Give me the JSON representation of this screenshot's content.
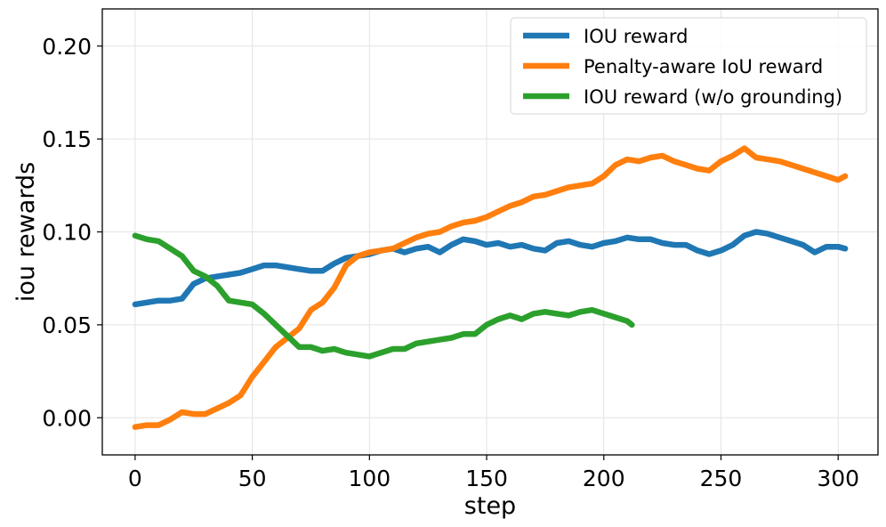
{
  "chart_data": {
    "type": "line",
    "title": "",
    "xlabel": "step",
    "ylabel": "iou rewards",
    "xlim": [
      -14,
      317
    ],
    "ylim": [
      -0.02,
      0.22
    ],
    "xticks": [
      0,
      50,
      100,
      150,
      200,
      250,
      300
    ],
    "xtick_labels": [
      "0",
      "50",
      "100",
      "150",
      "200",
      "250",
      "300"
    ],
    "yticks": [
      0.0,
      0.05,
      0.1,
      0.15,
      0.2
    ],
    "ytick_labels": [
      "0.00",
      "0.05",
      "0.10",
      "0.15",
      "0.20"
    ],
    "grid": true,
    "legend_position": "top-right",
    "series": [
      {
        "name": "IOU reward",
        "color": "#1f77b4",
        "x": [
          0,
          5,
          10,
          15,
          20,
          25,
          30,
          35,
          40,
          45,
          50,
          55,
          60,
          65,
          70,
          75,
          80,
          85,
          90,
          95,
          100,
          105,
          110,
          115,
          120,
          125,
          130,
          135,
          140,
          145,
          150,
          155,
          160,
          165,
          170,
          175,
          180,
          185,
          190,
          195,
          200,
          205,
          210,
          215,
          220,
          225,
          230,
          235,
          240,
          245,
          250,
          255,
          260,
          265,
          270,
          275,
          280,
          285,
          290,
          295,
          300,
          303
        ],
        "y": [
          0.061,
          0.062,
          0.063,
          0.063,
          0.064,
          0.072,
          0.075,
          0.076,
          0.077,
          0.078,
          0.08,
          0.082,
          0.082,
          0.081,
          0.08,
          0.079,
          0.079,
          0.083,
          0.086,
          0.087,
          0.088,
          0.09,
          0.091,
          0.089,
          0.091,
          0.092,
          0.089,
          0.093,
          0.096,
          0.095,
          0.093,
          0.094,
          0.092,
          0.093,
          0.091,
          0.09,
          0.094,
          0.095,
          0.093,
          0.092,
          0.094,
          0.095,
          0.097,
          0.096,
          0.096,
          0.094,
          0.093,
          0.093,
          0.09,
          0.088,
          0.09,
          0.093,
          0.098,
          0.1,
          0.099,
          0.097,
          0.095,
          0.093,
          0.089,
          0.092,
          0.092,
          0.091
        ]
      },
      {
        "name": "Penalty-aware IoU reward",
        "color": "#ff7f0e",
        "x": [
          0,
          5,
          10,
          15,
          20,
          25,
          30,
          35,
          40,
          45,
          50,
          55,
          60,
          65,
          70,
          75,
          80,
          85,
          90,
          95,
          100,
          105,
          110,
          115,
          120,
          125,
          130,
          135,
          140,
          145,
          150,
          155,
          160,
          165,
          170,
          175,
          180,
          185,
          190,
          195,
          200,
          205,
          210,
          215,
          220,
          225,
          230,
          235,
          240,
          245,
          250,
          255,
          260,
          265,
          270,
          275,
          280,
          285,
          290,
          295,
          300,
          303
        ],
        "y": [
          -0.005,
          -0.004,
          -0.004,
          -0.001,
          0.003,
          0.002,
          0.002,
          0.005,
          0.008,
          0.012,
          0.022,
          0.03,
          0.038,
          0.043,
          0.048,
          0.058,
          0.062,
          0.07,
          0.082,
          0.087,
          0.089,
          0.09,
          0.091,
          0.094,
          0.097,
          0.099,
          0.1,
          0.103,
          0.105,
          0.106,
          0.108,
          0.111,
          0.114,
          0.116,
          0.119,
          0.12,
          0.122,
          0.124,
          0.125,
          0.126,
          0.13,
          0.136,
          0.139,
          0.138,
          0.14,
          0.141,
          0.138,
          0.136,
          0.134,
          0.133,
          0.138,
          0.141,
          0.145,
          0.14,
          0.139,
          0.138,
          0.136,
          0.134,
          0.132,
          0.13,
          0.128,
          0.13
        ]
      },
      {
        "name": "IOU reward (w/o grounding)",
        "color": "#2ca02c",
        "x": [
          0,
          5,
          10,
          15,
          20,
          25,
          30,
          35,
          40,
          45,
          50,
          55,
          60,
          65,
          70,
          75,
          80,
          85,
          90,
          95,
          100,
          105,
          110,
          115,
          120,
          125,
          130,
          135,
          140,
          145,
          150,
          155,
          160,
          165,
          170,
          175,
          180,
          185,
          190,
          195,
          200,
          205,
          210,
          212
        ],
        "y": [
          0.098,
          0.096,
          0.095,
          0.091,
          0.087,
          0.079,
          0.076,
          0.071,
          0.063,
          0.062,
          0.061,
          0.056,
          0.05,
          0.044,
          0.038,
          0.038,
          0.036,
          0.037,
          0.035,
          0.034,
          0.033,
          0.035,
          0.037,
          0.037,
          0.04,
          0.041,
          0.042,
          0.043,
          0.045,
          0.045,
          0.05,
          0.053,
          0.055,
          0.053,
          0.056,
          0.057,
          0.056,
          0.055,
          0.057,
          0.058,
          0.056,
          0.054,
          0.052,
          0.05
        ]
      }
    ]
  }
}
